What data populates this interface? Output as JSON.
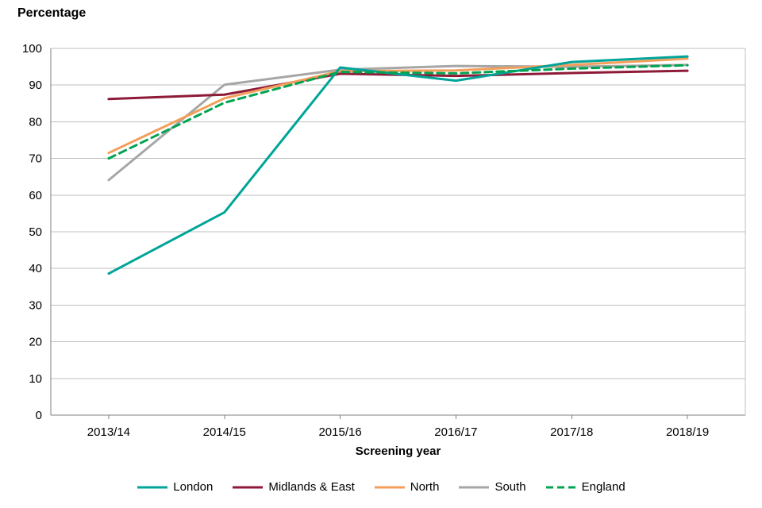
{
  "page": {
    "title": "Percentage",
    "x_axis_title": "Screening year"
  },
  "chart_data": {
    "type": "line",
    "title": "Percentage",
    "xlabel": "Screening year",
    "ylabel": "Percentage",
    "categories": [
      "2013/14",
      "2014/15",
      "2015/16",
      "2016/17",
      "2017/18",
      "2018/19"
    ],
    "ylim": [
      0,
      100
    ],
    "yticks": [
      0,
      10,
      20,
      30,
      40,
      50,
      60,
      70,
      80,
      90,
      100
    ],
    "grid": "horizontal",
    "legend_position": "bottom",
    "draw_order": [
      3,
      1,
      2,
      0,
      4
    ],
    "series": [
      {
        "name": "London",
        "color": "#00A499",
        "dash": "solid",
        "values": [
          38.6,
          55.3,
          94.8,
          91.2,
          96.3,
          97.8
        ]
      },
      {
        "name": "Midlands & East",
        "color": "#8E1A38",
        "dash": "solid",
        "values": [
          86.2,
          87.4,
          93.1,
          92.5,
          93.3,
          93.9
        ]
      },
      {
        "name": "North",
        "color": "#F49E5B",
        "dash": "solid",
        "values": [
          71.5,
          86.4,
          93.8,
          94.0,
          95.5,
          97.2
        ]
      },
      {
        "name": "South",
        "color": "#A6A6A6",
        "dash": "solid",
        "values": [
          64.1,
          90.1,
          94.2,
          95.2,
          95.0,
          95.5
        ]
      },
      {
        "name": "England",
        "color": "#00A450",
        "dash": "dashed",
        "values": [
          70.0,
          85.2,
          93.6,
          93.2,
          94.5,
          95.4
        ]
      }
    ]
  },
  "colors": {
    "background": "#FFFFFF",
    "gridline": "#BFBFBF",
    "axis": "#7F7F7F",
    "text": "#000000"
  }
}
